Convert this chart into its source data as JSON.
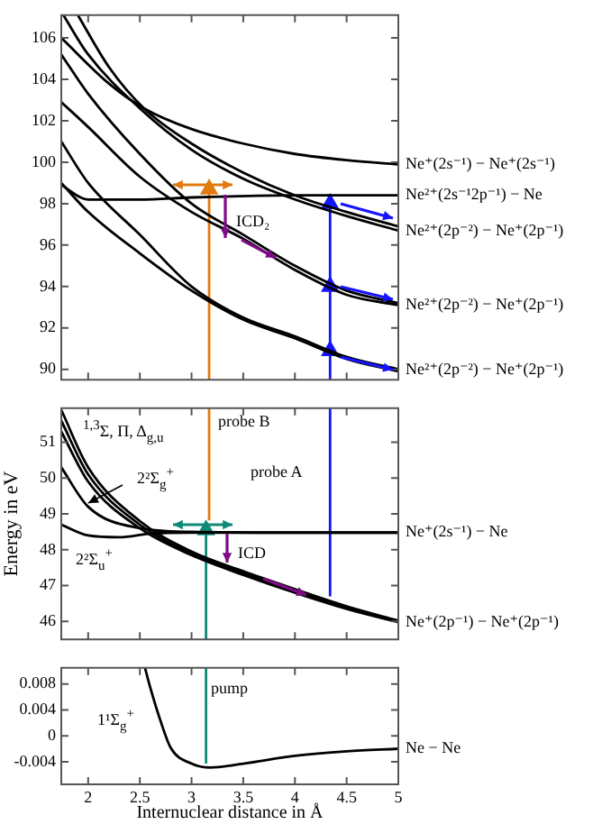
{
  "chart_data": [
    {
      "type": "line",
      "xlim": [
        1.74,
        5
      ],
      "xticks": [
        2,
        2.5,
        3,
        3.5,
        4,
        4.5,
        5
      ],
      "ylim": [
        89.5,
        107.1
      ],
      "yticks": [
        90,
        92,
        94,
        96,
        98,
        100,
        102,
        104,
        106
      ],
      "tick_labels": "y",
      "series": [
        {
          "name": "Ne⁺(2s⁻¹) − Ne⁺(2s⁻¹)",
          "color": "#000000",
          "x": [
            1.74,
            2.2,
            2.54,
            3,
            3.5,
            4,
            4.5,
            5
          ],
          "values": [
            106.0,
            103.8,
            102.6,
            101.6,
            100.9,
            100.4,
            100.1,
            99.9
          ]
        },
        {
          "color": "#000000",
          "x": [
            1.9,
            2.2,
            2.54,
            3,
            3.5,
            4,
            4.5,
            5
          ],
          "values": [
            107.1,
            104.6,
            102.6,
            100.9,
            99.5,
            98.4,
            97.6,
            96.9
          ]
        },
        {
          "name": "Ne²⁺(2p⁻²) − Ne⁺(2p⁻¹)",
          "color": "#000000",
          "x": [
            1.76,
            2,
            2.5,
            3,
            3.5,
            4,
            4.5,
            5
          ],
          "values": [
            107.1,
            105.2,
            102.6,
            100.6,
            99.2,
            98.2,
            97.4,
            96.7
          ]
        },
        {
          "color": "#000000",
          "x": [
            1.74,
            2,
            2.5,
            3,
            3.5,
            4,
            4.5,
            5
          ],
          "values": [
            105.2,
            103.3,
            100.4,
            98.0,
            96.5,
            95.0,
            93.8,
            93.2
          ]
        },
        {
          "name": "Ne²⁺(2p⁻²) − Ne⁺(2p⁻¹)",
          "color": "#000000",
          "x": [
            1.74,
            2,
            2.5,
            3,
            3.5,
            4,
            4.5,
            5
          ],
          "values": [
            102.9,
            101.7,
            99.3,
            97.6,
            96.3,
            94.8,
            93.6,
            93.1
          ]
        },
        {
          "name": "Ne²⁺(2p⁻²) − Ne⁺(2p⁻¹)",
          "color": "#000000",
          "x": [
            1.74,
            2,
            2.5,
            3,
            3.5,
            4,
            4.5,
            5
          ],
          "values": [
            101.0,
            99.0,
            96.5,
            94.0,
            92.5,
            91.6,
            90.6,
            90.0
          ]
        },
        {
          "color": "#000000",
          "x": [
            1.74,
            2,
            2.5,
            3,
            3.5,
            4,
            4.5,
            5
          ],
          "values": [
            99.0,
            97.6,
            95.6,
            93.8,
            92.4,
            91.5,
            90.5,
            89.9
          ]
        },
        {
          "name": "Ne²⁺(2s⁻¹2p⁻¹) − Ne",
          "color": "#000000",
          "x": [
            1.74,
            2,
            2.5,
            3,
            4,
            5
          ],
          "values": [
            98.9,
            98.2,
            98.2,
            98.3,
            98.4,
            98.4
          ]
        },
        {
          "color": "#e07b10",
          "marker": "triangle",
          "x": [
            3.17,
            3.17
          ],
          "values": [
            89.5,
            98.7
          ]
        },
        {
          "color": "#1414ff",
          "marker": "triangle",
          "x": [
            4.34,
            4.34,
            4.34,
            4.34
          ],
          "values": [
            89.5,
            90.9,
            94.0,
            98.0
          ]
        }
      ],
      "annotations": [
        "ICD₂"
      ]
    },
    {
      "type": "line",
      "xlim": [
        1.74,
        5
      ],
      "xticks": [
        2,
        2.5,
        3,
        3.5,
        4,
        4.5,
        5
      ],
      "ylim": [
        45.5,
        51.95
      ],
      "yticks": [
        46,
        47,
        48,
        49,
        50,
        51
      ],
      "tick_labels": "y",
      "ylabel": "Energy in eV",
      "series": [
        {
          "color": "#000000",
          "x": [
            1.74,
            2,
            2.5,
            3,
            3.5,
            4,
            4.5,
            5
          ],
          "values": [
            51.9,
            50.3,
            48.8,
            47.95,
            47.4,
            46.9,
            46.42,
            46.02
          ]
        },
        {
          "name": "Ne⁺(2p⁻¹) − Ne⁺(2p⁻¹)",
          "color": "#000000",
          "x": [
            1.74,
            2,
            2.5,
            3,
            3.5,
            4,
            4.5,
            5
          ],
          "values": [
            51.6,
            50.1,
            48.7,
            47.9,
            47.35,
            46.85,
            46.4,
            46.0
          ]
        },
        {
          "color": "#000000",
          "x": [
            1.74,
            2,
            2.5,
            3,
            3.5,
            4,
            4.5,
            5
          ],
          "values": [
            51.3,
            49.9,
            48.6,
            47.85,
            47.3,
            46.8,
            46.35,
            45.98
          ]
        },
        {
          "color": "#000000",
          "x": [
            1.74,
            2,
            2.5,
            3,
            4,
            5
          ],
          "values": [
            50.3,
            49.2,
            48.6,
            48.5,
            48.48,
            48.48
          ]
        },
        {
          "name": "Ne⁺(2s⁻¹) − Ne",
          "color": "#000000",
          "x": [
            1.74,
            2,
            2.3,
            2.6,
            3,
            4,
            5
          ],
          "values": [
            48.7,
            48.4,
            48.35,
            48.45,
            48.48,
            48.48,
            48.48
          ]
        },
        {
          "color": "#e07b10",
          "x": [
            3.17,
            3.17
          ],
          "values": [
            48.82,
            51.95
          ]
        },
        {
          "color": "#1414ff",
          "x": [
            4.34,
            4.34
          ],
          "values": [
            46.7,
            51.95
          ]
        },
        {
          "color": "#0e8a78",
          "marker": "triangle",
          "x": [
            3.14,
            3.14
          ],
          "values": [
            45.5,
            48.55
          ]
        }
      ],
      "annotations": [
        "probe B",
        "probe A",
        "ICD",
        "$^{1,3}$Σ, Π, Δ$_{g,u}$",
        "2²Σ$_{g}$$^{+}$",
        "2²Σ$_{u}$$^{+}$"
      ]
    },
    {
      "type": "line",
      "xlim": [
        1.74,
        5
      ],
      "xticks": [
        2,
        2.5,
        3,
        3.5,
        4,
        4.5,
        5
      ],
      "ylim": [
        -0.0075,
        0.0105
      ],
      "yticks": [
        -0.004,
        0,
        0.004,
        0.008
      ],
      "xlabel": "Internuclear distance in Å",
      "series": [
        {
          "name": "Ne − Ne",
          "color": "#000000",
          "x": [
            2.55,
            2.6,
            2.7,
            2.8,
            3,
            3.18,
            3.5,
            4,
            4.5,
            5
          ],
          "values": [
            0.0105,
            0.0075,
            0.0023,
            -0.0019,
            -0.0043,
            -0.0049,
            -0.0043,
            -0.0031,
            -0.0024,
            -0.002
          ]
        },
        {
          "color": "#0e8a78",
          "x": [
            3.14,
            3.14
          ],
          "values": [
            -0.0043,
            0.0105
          ]
        }
      ],
      "annotations": [
        "pump",
        "1¹Σ$_{g}$$^{+}$"
      ]
    }
  ]
}
